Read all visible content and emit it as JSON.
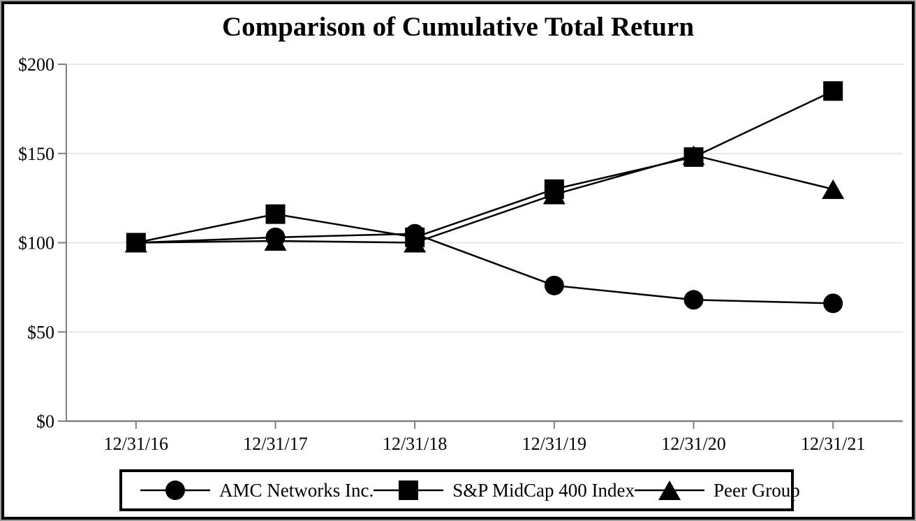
{
  "chart_data": {
    "type": "line",
    "title": "Comparison of Cumulative Total Return",
    "categories": [
      "12/31/16",
      "12/31/17",
      "12/31/18",
      "12/31/19",
      "12/31/20",
      "12/31/21"
    ],
    "series": [
      {
        "name": "AMC Networks Inc.",
        "marker": "circle",
        "values": [
          100,
          103,
          105,
          76,
          68,
          66
        ]
      },
      {
        "name": "S&P MidCap 400 Index",
        "marker": "square",
        "values": [
          100,
          116,
          103,
          130,
          148,
          185
        ]
      },
      {
        "name": "Peer Group",
        "marker": "triangle",
        "values": [
          100,
          101,
          100,
          127,
          149,
          130
        ]
      }
    ],
    "ylim": [
      0,
      200
    ],
    "ytick_step": 50,
    "ytick_labels": [
      "$0",
      "$50",
      "$100",
      "$150",
      "$200"
    ],
    "xlabel": "",
    "ylabel": "",
    "grid": true,
    "legend_position": "bottom",
    "colors": {
      "series": "#000000",
      "gridline": "#e6e6e6",
      "axis": "#808080",
      "text": "#000000",
      "background": "#ffffff",
      "frame_border": "#000000"
    }
  }
}
